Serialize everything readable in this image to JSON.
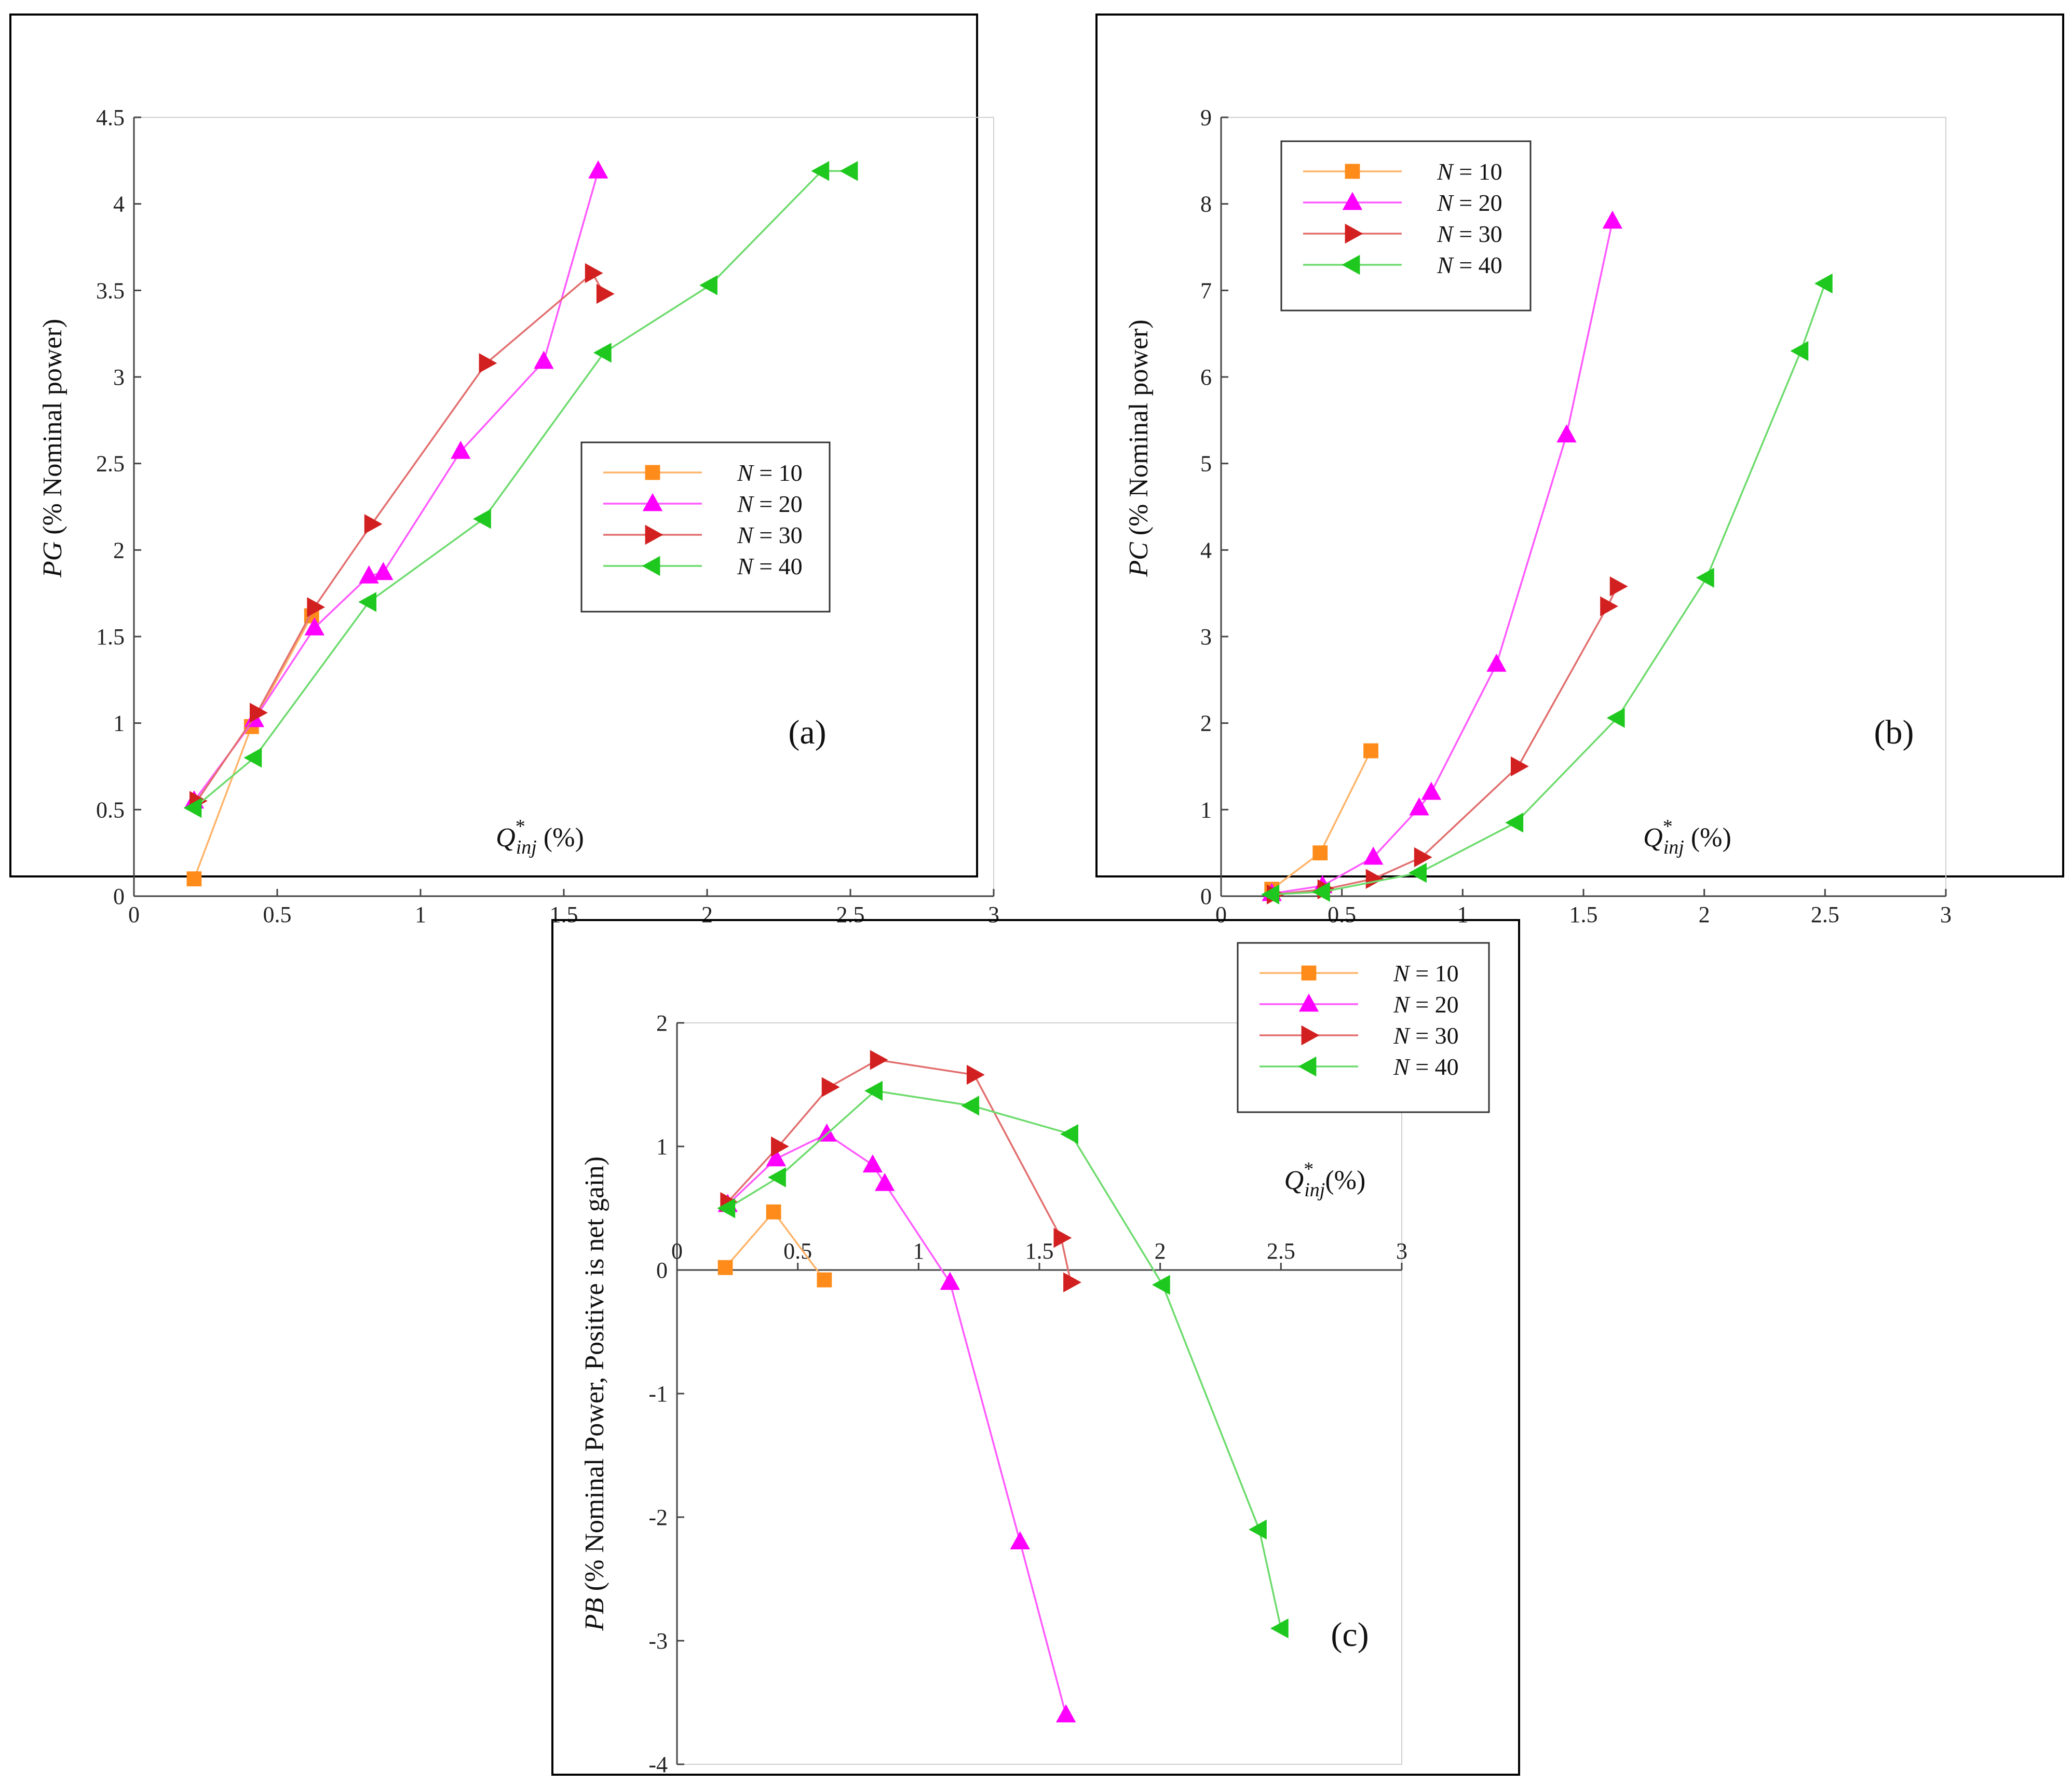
{
  "chart_data": [
    {
      "type": "line",
      "panel": "(a)",
      "xlabel": {
        "main": "Q",
        "sup": "*",
        "sub": "inj",
        "unit": " (%)"
      },
      "ylabel": {
        "italic": "PG",
        "rest": " (% Nominal power)"
      },
      "xlim": [
        0,
        3
      ],
      "ylim": [
        0,
        4.5
      ],
      "xticks": [
        "0",
        "0.5",
        "1",
        "1.5",
        "2",
        "2.5",
        "3"
      ],
      "yticks": [
        "0",
        "0.5",
        "1",
        "1.5",
        "2",
        "2.5",
        "3",
        "3.5",
        "4",
        "4.5"
      ],
      "legend_position": "middle-right",
      "series": [
        {
          "name": "N = 10",
          "var": "N",
          "value_label": " = 10",
          "color": "#FF8C1A",
          "marker": "square",
          "x": [
            0.21,
            0.41,
            0.62
          ],
          "y": [
            0.1,
            0.98,
            1.62
          ]
        },
        {
          "name": "N = 20",
          "var": "N",
          "value_label": " = 20",
          "color": "#FF00FF",
          "marker": "triangle-up",
          "x": [
            0.21,
            0.42,
            0.63,
            0.82,
            0.87,
            1.14,
            1.43,
            1.62
          ],
          "y": [
            0.55,
            1.02,
            1.55,
            1.85,
            1.87,
            2.57,
            3.09,
            4.19
          ]
        },
        {
          "name": "N = 30",
          "var": "N",
          "value_label": " = 30",
          "color": "#D22020",
          "marker": "triangle-right",
          "x": [
            0.22,
            0.43,
            0.63,
            0.83,
            1.23,
            1.6,
            1.64
          ],
          "y": [
            0.55,
            1.06,
            1.67,
            2.15,
            3.08,
            3.6,
            3.48
          ]
        },
        {
          "name": "N = 40",
          "var": "N",
          "value_label": " = 40",
          "color": "#1EC81E",
          "marker": "triangle-left",
          "x": [
            0.21,
            0.42,
            0.82,
            1.22,
            1.64,
            2.01,
            2.4,
            2.5
          ],
          "y": [
            0.51,
            0.8,
            1.7,
            2.18,
            3.14,
            3.53,
            4.19,
            4.19
          ]
        }
      ]
    },
    {
      "type": "line",
      "panel": "(b)",
      "xlabel": {
        "main": "Q",
        "sup": "*",
        "sub": "inj",
        "unit": " (%)"
      },
      "ylabel": {
        "italic": "PC",
        "rest": " (% Nominal power)"
      },
      "xlim": [
        0,
        3
      ],
      "ylim": [
        0,
        9
      ],
      "xticks": [
        "0",
        "0.5",
        "1",
        "1.5",
        "2",
        "2.5",
        "3"
      ],
      "yticks": [
        "0",
        "1",
        "2",
        "3",
        "4",
        "5",
        "6",
        "7",
        "8",
        "9"
      ],
      "legend_position": "top-left",
      "series": [
        {
          "name": "N = 10",
          "var": "N",
          "value_label": " = 10",
          "color": "#FF8C1A",
          "marker": "square",
          "x": [
            0.21,
            0.41,
            0.62
          ],
          "y": [
            0.08,
            0.5,
            1.68
          ]
        },
        {
          "name": "N = 20",
          "var": "N",
          "value_label": " = 20",
          "color": "#FF00FF",
          "marker": "triangle-up",
          "x": [
            0.21,
            0.42,
            0.63,
            0.82,
            0.87,
            1.14,
            1.43,
            1.62
          ],
          "y": [
            0.03,
            0.12,
            0.45,
            1.02,
            1.2,
            2.68,
            5.33,
            7.8
          ]
        },
        {
          "name": "N = 30",
          "var": "N",
          "value_label": " = 30",
          "color": "#D22020",
          "marker": "triangle-right",
          "x": [
            0.22,
            0.43,
            0.63,
            0.83,
            1.23,
            1.6,
            1.64
          ],
          "y": [
            0.02,
            0.08,
            0.2,
            0.45,
            1.5,
            3.35,
            3.58
          ]
        },
        {
          "name": "N = 40",
          "var": "N",
          "value_label": " = 40",
          "color": "#1EC81E",
          "marker": "triangle-left",
          "x": [
            0.21,
            0.42,
            0.82,
            1.22,
            1.64,
            2.01,
            2.4,
            2.5
          ],
          "y": [
            0.02,
            0.05,
            0.27,
            0.85,
            2.06,
            3.68,
            6.3,
            7.08
          ]
        }
      ]
    },
    {
      "type": "line",
      "panel": "(c)",
      "xlabel": {
        "main": "Q",
        "sup": "*",
        "sub": "inj",
        "unit": "(%)"
      },
      "ylabel": {
        "italic": "PB",
        "rest": " (% Nominal Power, Positive is net gain)"
      },
      "xlim": [
        0,
        3
      ],
      "ylim": [
        -4,
        2
      ],
      "xticks": [
        "0",
        "0.5",
        "1",
        "1.5",
        "2",
        "2.5",
        "3"
      ],
      "yticks": [
        "-4",
        "-3",
        "-2",
        "-1",
        "0",
        "1",
        "2"
      ],
      "legend_position": "top-right",
      "series": [
        {
          "name": "N = 10",
          "var": "N",
          "value_label": " = 10",
          "color": "#FF8C1A",
          "marker": "square",
          "x": [
            0.2,
            0.4,
            0.61
          ],
          "y": [
            0.02,
            0.47,
            -0.08
          ]
        },
        {
          "name": "N = 20",
          "var": "N",
          "value_label": " = 20",
          "color": "#FF00FF",
          "marker": "triangle-up",
          "x": [
            0.21,
            0.41,
            0.62,
            0.81,
            0.86,
            1.13,
            1.42,
            1.61
          ],
          "y": [
            0.53,
            0.9,
            1.1,
            0.85,
            0.7,
            -0.1,
            -2.2,
            -3.6
          ]
        },
        {
          "name": "N = 30",
          "var": "N",
          "value_label": " = 30",
          "color": "#D22020",
          "marker": "triangle-right",
          "x": [
            0.21,
            0.42,
            0.63,
            0.83,
            1.23,
            1.59,
            1.63
          ],
          "y": [
            0.55,
            1.0,
            1.48,
            1.7,
            1.58,
            0.26,
            -0.1
          ]
        },
        {
          "name": "N = 40",
          "var": "N",
          "value_label": " = 40",
          "color": "#1EC81E",
          "marker": "triangle-left",
          "x": [
            0.21,
            0.42,
            0.82,
            1.22,
            1.63,
            2.01,
            2.41,
            2.5
          ],
          "y": [
            0.5,
            0.75,
            1.45,
            1.33,
            1.1,
            -0.12,
            -2.1,
            -2.9
          ]
        }
      ]
    }
  ]
}
